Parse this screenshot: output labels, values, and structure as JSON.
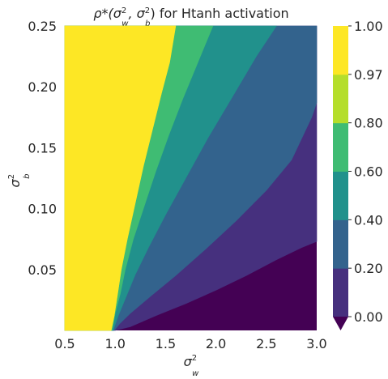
{
  "chart_data": {
    "type": "heatmap",
    "subtype": "filled-contour",
    "title": {
      "main": "ρ*(σ",
      "sup1": "2",
      "sub1": "w",
      "mid": ", σ",
      "sup2": "2",
      "sub2": "b",
      "tail": ") for Htanh activation"
    },
    "xlabel": {
      "base": "σ",
      "sup": "2",
      "sub": "w"
    },
    "ylabel": {
      "base": "σ",
      "sup": "2",
      "sub": "b"
    },
    "xlim": [
      0.5,
      3.0
    ],
    "ylim": [
      0.0,
      0.25
    ],
    "x_ticks": [
      0.5,
      1.0,
      1.5,
      2.0,
      2.5,
      3.0
    ],
    "x_tick_labels": [
      "0.5",
      "1.0",
      "1.5",
      "2.0",
      "2.5",
      "3.0"
    ],
    "y_ticks": [
      0.05,
      0.1,
      0.15,
      0.2,
      0.25
    ],
    "y_tick_labels": [
      "0.05",
      "0.10",
      "0.15",
      "0.20",
      "0.25"
    ],
    "grid": false,
    "colorbar": {
      "levels": [
        0.0,
        0.2,
        0.4,
        0.6,
        0.8,
        0.97,
        1.0
      ],
      "tick_labels": [
        "0.00",
        "0.20",
        "0.40",
        "0.60",
        "0.80",
        "0.97",
        "1.00"
      ],
      "extend": "min",
      "colors": [
        "#440154",
        "#46307e",
        "#33638d",
        "#21918c",
        "#3fbc73",
        "#b5de2b",
        "#fde725"
      ]
    },
    "contour_boundaries": [
      {
        "level": 0.2,
        "points": [
          [
            1.0,
            0.0
          ],
          [
            1.15,
            0.003
          ],
          [
            1.4,
            0.012
          ],
          [
            1.7,
            0.022
          ],
          [
            2.0,
            0.033
          ],
          [
            2.3,
            0.045
          ],
          [
            2.6,
            0.058
          ],
          [
            2.85,
            0.068
          ],
          [
            3.0,
            0.073
          ]
        ]
      },
      {
        "level": 0.4,
        "points": [
          [
            0.99,
            0.0
          ],
          [
            1.05,
            0.006
          ],
          [
            1.15,
            0.014
          ],
          [
            1.35,
            0.028
          ],
          [
            1.6,
            0.045
          ],
          [
            1.9,
            0.067
          ],
          [
            2.2,
            0.09
          ],
          [
            2.5,
            0.115
          ],
          [
            2.75,
            0.14
          ],
          [
            2.95,
            0.175
          ],
          [
            3.0,
            0.187
          ]
        ]
      },
      {
        "level": 0.6,
        "points": [
          [
            0.98,
            0.0
          ],
          [
            1.03,
            0.012
          ],
          [
            1.1,
            0.026
          ],
          [
            1.2,
            0.046
          ],
          [
            1.33,
            0.068
          ],
          [
            1.5,
            0.095
          ],
          [
            1.7,
            0.125
          ],
          [
            1.92,
            0.158
          ],
          [
            2.15,
            0.19
          ],
          [
            2.4,
            0.225
          ],
          [
            2.6,
            0.25
          ]
        ]
      },
      {
        "level": 0.8,
        "points": [
          [
            0.97,
            0.0
          ],
          [
            1.0,
            0.014
          ],
          [
            1.05,
            0.03
          ],
          [
            1.1,
            0.05
          ],
          [
            1.18,
            0.075
          ],
          [
            1.28,
            0.1
          ],
          [
            1.4,
            0.13
          ],
          [
            1.53,
            0.16
          ],
          [
            1.67,
            0.19
          ],
          [
            1.82,
            0.22
          ],
          [
            1.97,
            0.25
          ]
        ]
      },
      {
        "level": 0.97,
        "points": [
          [
            0.96,
            0.0
          ],
          [
            0.99,
            0.012
          ],
          [
            1.02,
            0.028
          ],
          [
            1.06,
            0.05
          ],
          [
            1.12,
            0.075
          ],
          [
            1.2,
            0.105
          ],
          [
            1.28,
            0.135
          ],
          [
            1.37,
            0.165
          ],
          [
            1.46,
            0.195
          ],
          [
            1.54,
            0.22
          ],
          [
            1.6,
            0.25
          ]
        ]
      }
    ]
  }
}
